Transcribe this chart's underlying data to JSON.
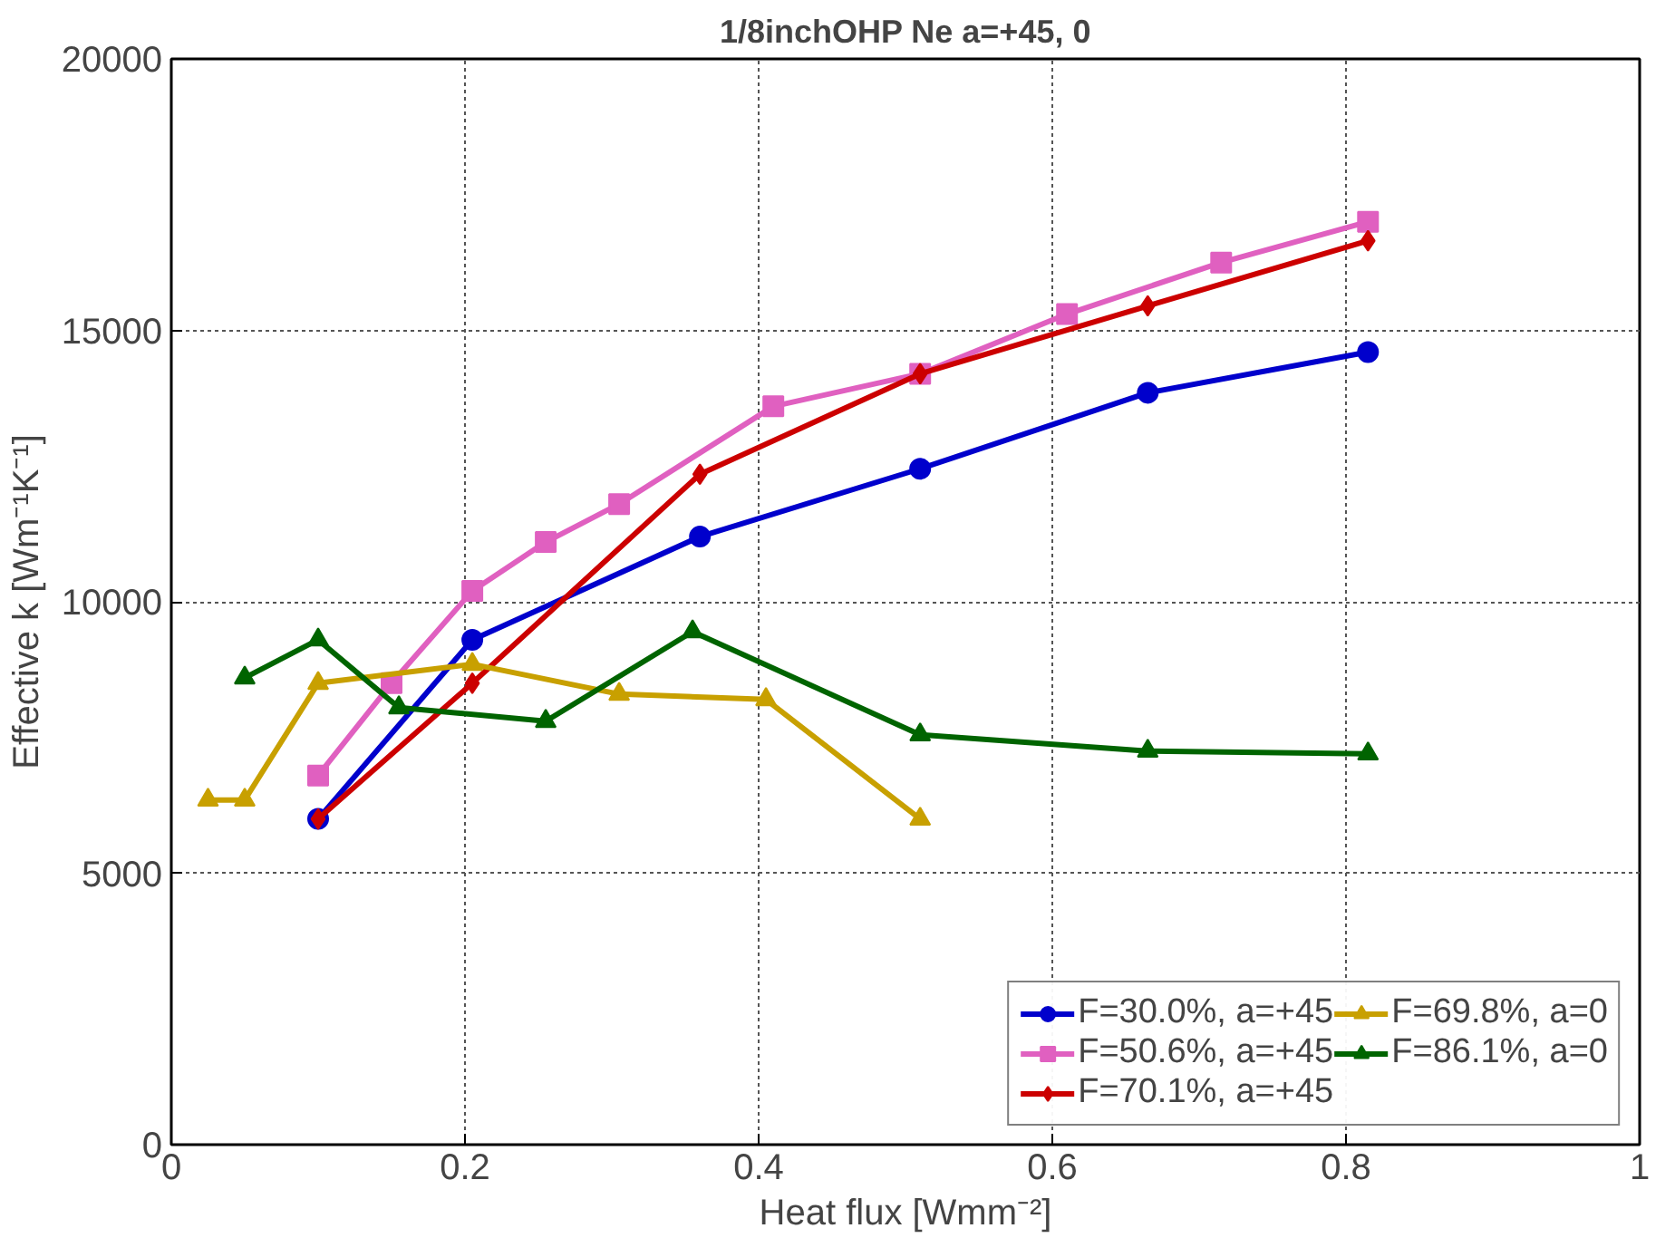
{
  "chart_data": {
    "type": "line",
    "title": "1/8inchOHP Ne a=+45, 0",
    "xlabel": "Heat flux [Wmm⁻²]",
    "ylabel": "Effective k [Wm⁻¹K⁻¹]",
    "xlim": [
      0,
      1
    ],
    "xticks": [
      0,
      0.2,
      0.4,
      0.6,
      0.8,
      1
    ],
    "ylim": [
      0,
      20000
    ],
    "yticks": [
      0,
      5000,
      10000,
      15000,
      20000
    ],
    "grid": true,
    "legend": "bottom right",
    "line_style": "solid",
    "series": [
      {
        "name": "F=30.0%, a=+45",
        "color": "#0000cc",
        "marker": "circle",
        "x": [
          0.1,
          0.205,
          0.36,
          0.51,
          0.665,
          0.815
        ],
        "values": [
          6000,
          9300,
          11200,
          12450,
          13850,
          14600
        ]
      },
      {
        "name": "F=50.6%, a=+45",
        "color": "#e060c0",
        "marker": "square",
        "x": [
          0.1,
          0.15,
          0.205,
          0.255,
          0.305,
          0.41,
          0.51,
          0.61,
          0.715,
          0.815
        ],
        "values": [
          6800,
          8500,
          10200,
          11100,
          11800,
          13600,
          14200,
          15300,
          16250,
          17000
        ]
      },
      {
        "name": "F=70.1%, a=+45",
        "color": "#cc0000",
        "marker": "diamond",
        "x": [
          0.1,
          0.205,
          0.36,
          0.51,
          0.665,
          0.815
        ],
        "values": [
          6000,
          8500,
          12350,
          14200,
          15450,
          16650
        ]
      },
      {
        "name": "F=69.8%, a=0",
        "color": "#c8a000",
        "marker": "triangle",
        "x": [
          0.025,
          0.05,
          0.1,
          0.205,
          0.305,
          0.405,
          0.51
        ],
        "values": [
          6350,
          6350,
          8500,
          8850,
          8300,
          8200,
          6000
        ]
      },
      {
        "name": "F=86.1%, a=0",
        "color": "#006400",
        "marker": "triangle",
        "x": [
          0.05,
          0.1,
          0.155,
          0.255,
          0.355,
          0.51,
          0.665,
          0.815
        ],
        "values": [
          8600,
          9300,
          8050,
          7800,
          9450,
          7550,
          7250,
          7200
        ]
      }
    ]
  }
}
